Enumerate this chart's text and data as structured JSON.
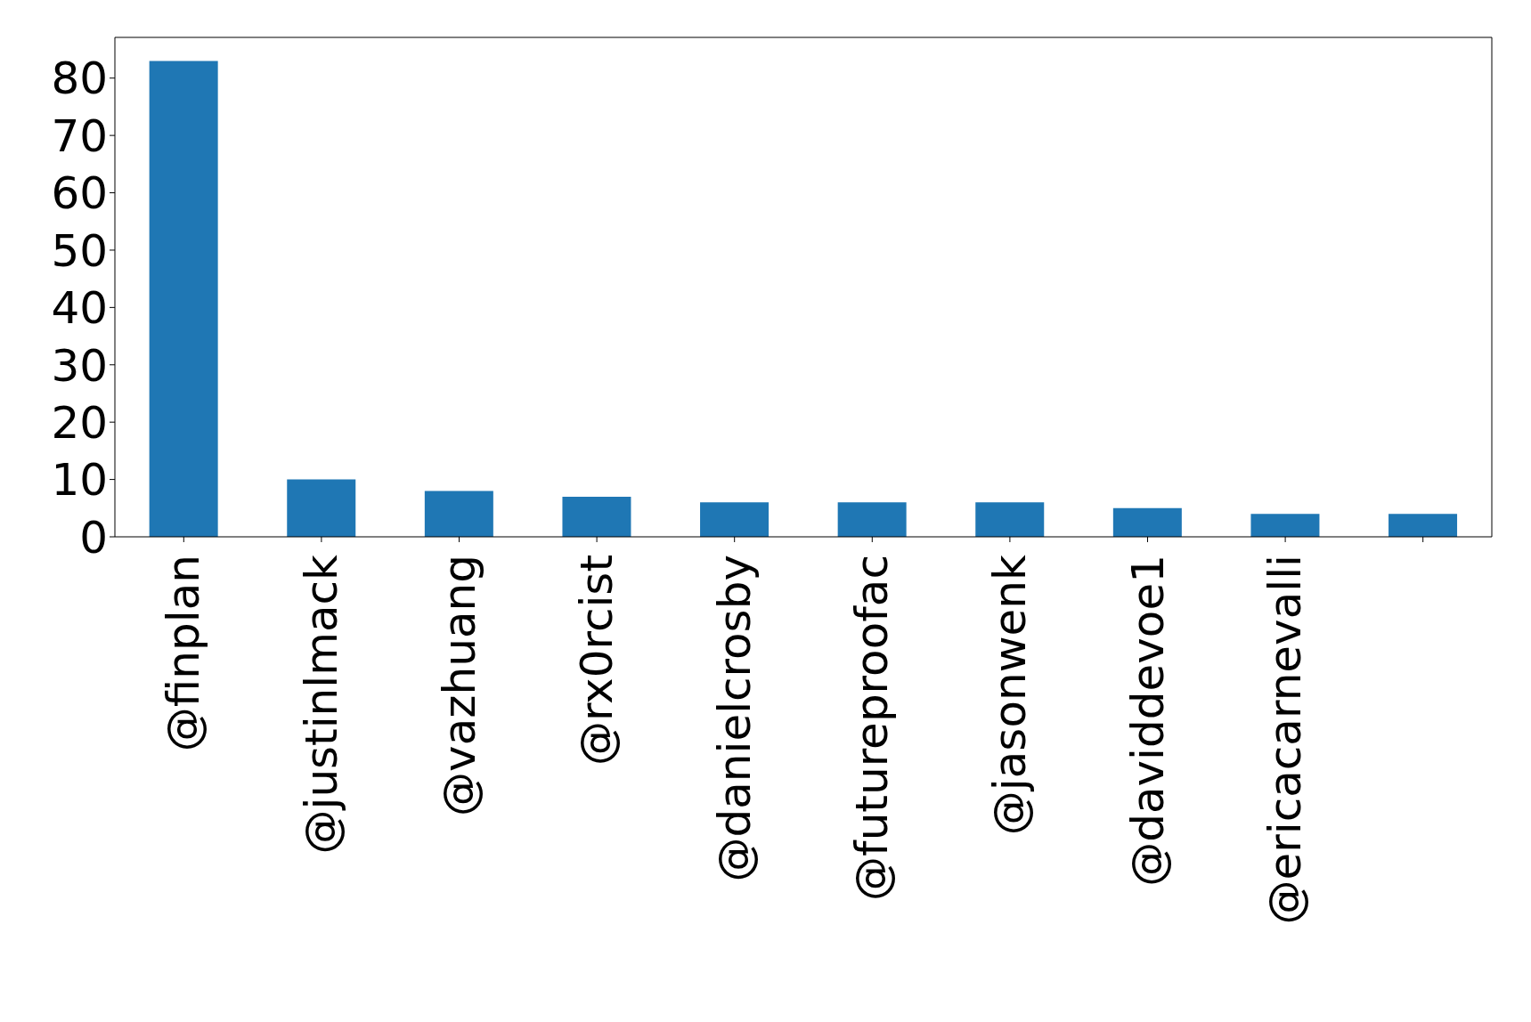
{
  "chart_data": {
    "type": "bar",
    "categories": [
      "@finplan",
      "@justinlmack",
      "@vazhuang",
      "@rx0rcist",
      "@danielcrosby",
      "@futureproofac",
      "@jasonwenk",
      "@daviddevoe1",
      "@ericacarnevalli",
      null
    ],
    "values": [
      83,
      10,
      8,
      7,
      6,
      6,
      6,
      5,
      4,
      4
    ],
    "color": "#1f77b4",
    "ylim": [
      0,
      87.1
    ],
    "yticks": [
      0,
      10,
      20,
      30,
      40,
      50,
      60,
      70,
      80
    ],
    "grid": false
  }
}
